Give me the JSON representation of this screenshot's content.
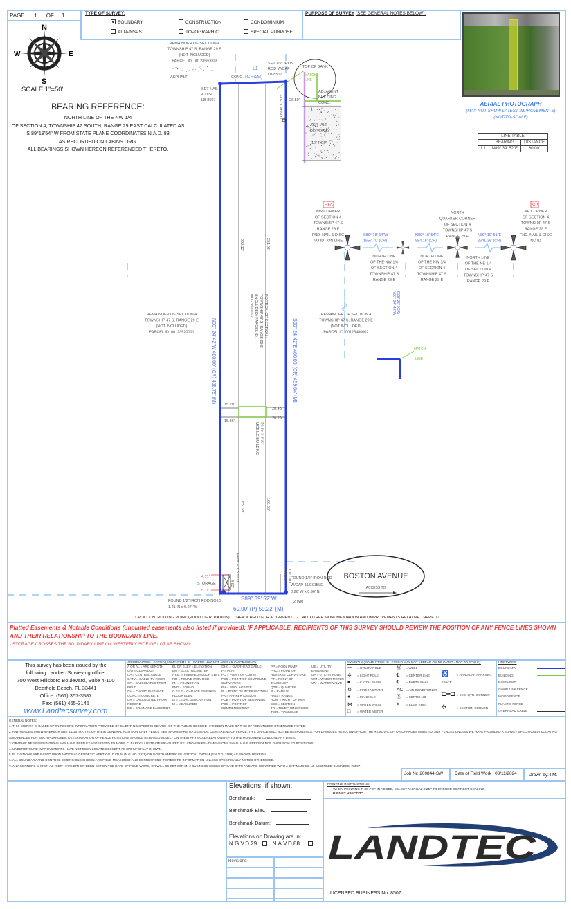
{
  "header": {
    "page_label": "PAGE",
    "page_num": "1",
    "of_label": "OF",
    "of_num": "1",
    "type_title": "TYPE OF SURVEY:",
    "types": [
      {
        "label": "BOUNDARY",
        "checked": true
      },
      {
        "label": "CONSTRUCTION",
        "checked": false
      },
      {
        "label": "CONDOMINIUM",
        "checked": false
      },
      {
        "label": "ALTA/NSPS",
        "checked": false
      },
      {
        "label": "TOPOGRAPHIC",
        "checked": false
      },
      {
        "label": "SPECIAL PURPOSE",
        "checked": false
      }
    ],
    "purpose_title": "PURPOSE OF SURVEY",
    "purpose_note": "(SEE GENERAL NOTES BELOW):"
  },
  "compass": {
    "n": "N",
    "s": "S",
    "e": "E",
    "w": "W",
    "scale": "SCALE:1\"=50'"
  },
  "bearing": {
    "title": "BEARING REFERENCE:",
    "lines": [
      "NORTH LINE OF THE NW 1/4",
      "OF SECTION 4, TOWNSHIP 47 SOUTH, RANGE 29 EAST CALCULATED AS",
      "S 89°18'54\" W FROM STATE PLANE COORDINATES N.A.D. 83",
      "AS RECORDED ON LABINS.ORG.",
      "ALL BEARINGS SHOWN HEREON REFERENCED THERETO."
    ]
  },
  "aerial": {
    "title": "AERIAL PHOTOGRAPH",
    "sub1": "(MAY NOT SHOW LATEST IMPROVEMENTS)",
    "sub2": "(NOT-TO-SCALE)"
  },
  "line_table": {
    "title": "LINE TABLE",
    "headers": [
      "",
      "BEARING",
      "DISTANCE"
    ],
    "rows": [
      [
        "L1",
        "N89° 39' 52\"E",
        "60.00'"
      ]
    ]
  },
  "drawing": {
    "remainder_top": [
      "REMAINDER OF SECTION 4",
      "TOWNSHIP 47 S, RANGE 29 E",
      "(NOT INCLUDED)",
      "PARCEL ID: 00123560003"
    ],
    "remainder_west": [
      "REMAINDER OF SECTION 4",
      "TOWNSHIP 47 S, RANGE 29 E",
      "(NOT INCLUDED)",
      "PARCEL ID: 00123520001"
    ],
    "remainder_east": [
      "REMAINDER OF SECTION 4",
      "TOWNSHIP 47 S, RANGE 29 E",
      "(NOT INCLUDED)",
      "PARCEL ID: 00123480002"
    ],
    "portion": [
      "PORTION OF SECTION 4",
      "TOWNSHIP 47 S, RANGE 29 E",
      "(INCLUDED) PARCEL ID:",
      "00123600002"
    ],
    "set_rod": [
      "SET 1/2\" IRON",
      "ROD W/CAP",
      "LB 8507"
    ],
    "set_nail": [
      "SET NAIL",
      "& DISC",
      "LB 8507"
    ],
    "asphalt": "ASPHALT",
    "conc": "CONC.",
    "l1": "L1",
    "crm": "(CR&M)",
    "top_of_bank": "TOP OF BANK",
    "match_line": [
      "MATCH",
      "LINE"
    ],
    "telecom": "TELECOM BOX",
    "dist_26": "26.59'",
    "adjacent": [
      "ADJACENT",
      "BUILDING",
      "CONC."
    ],
    "driveway": [
      "ASPHALT",
      "DRIVEWAY"
    ],
    "rcp": "12\" RCP",
    "west_line": "N00° 24' 42\"W  460.00' (CR) 458.79' (M)",
    "east_line": "S00° 24' 42\"E  460.00' (CR) 459.04' (M)",
    "dim_292": "292.12'",
    "dim_291": "291.62'",
    "dim_1520": "15.20'",
    "dim_1536": "15.36'",
    "dim_2045": "20.45'",
    "dim_2029": "20.29'",
    "mobile": [
      "MOBILE BUILDING",
      "24.35' x 8.30'"
    ],
    "dim_159": "159.59'",
    "dim_160": "160.06'",
    "fence_w": "FENCE 1.5' OUT",
    "fence_e": [
      "FENCE",
      "1.0' OUT"
    ],
    "storage": "STORAGE",
    "st_471": "4.71'",
    "st_511": "5.11'",
    "dim_483": "4.83'",
    "found_w": [
      "FOUND 1/2\" IRON ROD NO ID",
      "1.21' N x 0.27' W"
    ],
    "found_e": [
      "FOUND 1/2\" IRON ROD",
      "W/CAP ILLEGIBLE",
      "0.26' W x 0.96' N"
    ],
    "wm": "2 WM",
    "south_line": [
      "S89° 39' 52\"W",
      "60.00' (P) 59.22' (M)"
    ],
    "street": "BOSTON AVENUE",
    "access": "ACCESS TO",
    "hfa": "HFA",
    "cp": "CP",
    "nw_corner": [
      "NW CORNER",
      "OF SECTION 4",
      "TOWNSHIP 47 S",
      "RANGE 29 E",
      "FND. NAIL & DISC",
      "NO ID - ON LINE"
    ],
    "nq_corner": [
      "NORTH",
      "QUARTER CORNER",
      "OF SECTION 4",
      "TOWNSHIP 47 S",
      "RANGE 29 E"
    ],
    "ne_corner": [
      "NE CORNER",
      "OF SECTION 4",
      "TOWNSHIP 47 S",
      "RANGE 29 E",
      "FND. NAIL & DISC",
      "NO ID"
    ],
    "b1": [
      "S89° 18' 54\"W",
      "1657.70' (CR)"
    ],
    "b2": [
      "N89° 18' 54\"E",
      "984.16' (CR)"
    ],
    "b3": [
      "N89° 19' 51\"E",
      "2641.38' (CR)"
    ],
    "nl1": [
      "NORTH LINE",
      "OF THE NW 1/4",
      "OF SECTION 4",
      "TOWNSHIP 47 S",
      "RANGE 29 E"
    ],
    "nl2": [
      "NORTH LINE",
      "OF THE NW 1/4",
      "OF SECTION 4",
      "TOWNSHIP 47 S",
      "RANGE 29 E"
    ],
    "nl3": [
      "NORTH LINE",
      "OF THE NE 1/4",
      "OF SECTION 4",
      "TOWNSHIP 47 S",
      "RANGE 29 E"
    ],
    "vert": [
      "N00° 24' 42\"W",
      "2667.28' (CR)"
    ]
  },
  "cp_line": "\"CP\" = CONTROLLING POINT (POINT OF ROTATION)     \"HFA\" = HELD FOR ALIGNMENT    -    ALL OTHER MONUMENTATION AND IMPROVEMENTS RELATIVE THERETO",
  "easements": {
    "lead": "Platted Easements & Notable Conditions (unplatted easements also listed if provided):",
    "bold": " IF APPLICABLE, RECIPIENTS OF THIS SURVEY SHOULD REVIEW THE POSITION OF ANY FENCE LINES SHOWN AND THEIR RELATIONSHIP TO THE BOUNDARY LINE.",
    "item": "- STORAGE CROSSES THE BOUNDARY LINE ON WESTERLY SIDE OF LOT AS SHOWN."
  },
  "office": {
    "lines": [
      "This survey has been issued by the",
      "following Landtec Surveying office:",
      "700 West Hillsboro Boulevard, Suite 4-100",
      "Deerfield Beach, FL 33441",
      "Office: (561) 367-3587",
      "Fax: (561) 465-3145"
    ],
    "web": "www.Landtecsurvey.com"
  },
  "abbrev": {
    "title": "ABBREVIATION LEGEND (SOME ITEMS IN LEGEND MAY NOT APPEAR ON DRAWING):",
    "cols": [
      [
        "A OR AL = ARC LENGTH",
        "C/O = CLEANOUT",
        "CA = CENTRAL ANGLE",
        "CATV = CABLE TV RISER",
        "CF = CALCULATED FROM FIELD",
        "CH = CHORD DISTANCE",
        "CONC. = CONCRETE",
        "CR = CALCULATED FROM RECORD",
        "DE = DRAINAGE EASEMENT"
      ],
      [
        "EL OR ELEV = ELEVATION",
        "EM = ELECTRIC METER",
        "F.F.E. = FINISHED FLOOR ELEV.",
        "FIR = FOUND IRON ROD",
        "FN = FOUND NAIL",
        "FND = FOUND",
        "G.F.F.E = GARAGE FINISHED FLOOR ELEV.",
        "LI = LEGAL DESCRIPTION",
        "M = MEASURED"
      ],
      [
        "OHC = OVERHEAD CABLE",
        "P = PLAT",
        "PC = POINT OF CURVE",
        "PCC = POINT OF COMPOUND CURVATURE",
        "PH = POOL HEATER",
        "PI = POINT OF INTERSECTION",
        "PK = PARKER KAELON",
        "POB = POINT OF BEGINNING",
        "POC = POINT OF COMMENCEMENT"
      ],
      [
        "PP = POOL PUMP",
        "PRC = POINT OF REVERSE CURVATURE",
        "PT = POINT OF TANGENCY",
        "QTR = QUARTER",
        "R = RADIUS",
        "RNG = RANGE",
        "ROW = RIGHT OF WAY",
        "SEC = SECTION",
        "TR = TELEPHONE RISER",
        "TWP = TOWNSHIP"
      ],
      [
        "UE = UTILITY EASEMENT",
        "UP = UTILITY POLE",
        "WM = WATER METER",
        "WV = WATER VALVE"
      ]
    ]
  },
  "symbols": {
    "title": "SYMBOLS (SOME ITEMS IN LEGEND MAY NOT APPEAR ON DRAWING - NOT TO SCALE):",
    "col1": [
      "= UTILITY POLE",
      "= LIGHT POLE",
      "= CATCH BASIN",
      "= FIRE HYDRANT",
      "= MANHOLE",
      "= WATER VALVE",
      "= WATER METER"
    ],
    "col2": [
      "= WELL",
      "= CENTER LINE",
      "= PARTY WALL",
      "= AIR CONDITIONER",
      "= SEPTIC LID",
      "= ELEV. SHOT"
    ],
    "ac": "AC",
    "wm": "WM",
    "x": "X",
    "col3": [
      "= HANDICAP PARKING SPACE",
      "= SEC. QTR. CORNER",
      "= SECTION CORNER"
    ]
  },
  "linetypes": {
    "title": "LINETYPES:",
    "items": [
      {
        "label": "BOUNDARY",
        "color": "#2a3ee0"
      },
      {
        "label": "BUILDING",
        "color": "#7cc942"
      },
      {
        "label": "EASEMENT",
        "color": "#e23b3b"
      },
      {
        "label": "CHAIN LINK FENCE",
        "color": "#333"
      },
      {
        "label": "WOOD FENCE",
        "color": "#333"
      },
      {
        "label": "PLASTIC FENCE",
        "color": "#333"
      },
      {
        "label": "OVERHEAD CABLE",
        "color": "#333"
      }
    ]
  },
  "notes": {
    "title": "GENERAL NOTES:",
    "items": [
      "1. THIS SURVEY IS BASED UPON RECORD INFORMATION PROVIDED BY CLIENT. NO SPECIFIC SEARCH OF THE PUBLIC RECORD HAS BEEN MADE BY THIS OFFICE UNLESS OTHERWISE NOTED.",
      "2. ANY FENCES SHOWN HEREON ARE ILLUSTRATIVE OF THEIR GENERAL POSITION ONLY. FENCE TIES SHOWN ARE TO GENERAL CENTERLINE OF FENCE. THIS OFFICE WILL NOT BE RESPONSIBLE FOR DAMAGES RESULTING FROM THE REMOVAL OF, OR CHANGES MADE TO, ANY FENCES UNLESS WE HAVE PROVIDED A SURVEY SPECIFICALLY LOCATING SAID FENCES FOR SUCH PURPOSES. DETERMINATION OF FENCE POSITIONS SHOULD BE BASED SOLELY ON THEIR PHYSICAL RELATIONSHIP TO THE MONUMENTED BOUNDARY LINES.",
      "3. GRAPHIC REPRESENTATIONS MAY HAVE BEEN EXAGGERATED TO MORE CLEARLY ILLUSTRATE MEASURED RELATIONSHIPS - DIMENSIONS SHALL HAVE PRECEDENCE OVER SCALED POSITIONS.",
      "4. UNDERGROUND IMPROVEMENTS HAVE NOT BEEN LOCATED EXCEPT AS SPECIFICALLY SHOWN.",
      "5. ELEVATIONS ARE BASED UPON NATIONAL GEODETIC VERTICAL DATUM (N.G.V.D. 1929) OR NORTH AMERICAN VERTICAL DATUM (N.A.V.D. 1988) AS SHOWN HEREON.",
      "6. ALL BOUNDARY AND CONTROL DIMENSIONS SHOWN ARE FIELD MEASURED AND CORRESPOND TO RECORD INFORMATION UNLESS SPECIFICALLY NOTED OTHERWISE.",
      "7. ANY CORNERS SHOWN AS \"SET\" HAVE EITHER BEEN SET ON THE DATE OF FIELD WORK, OR WILL BE SET WITHIN 2 BUSINESS WEEKS OF SAID DATE AND ARE IDENTIFIED WITH A CAP MARKED LB (LICENSED BUSINESS) #8507."
    ]
  },
  "job": {
    "job_nr": "Job Nr:  200844-SW",
    "date": "Date of Field Work : 03/11/2024",
    "drawn": "Drawn by: I.M."
  },
  "elev": {
    "title": "Elevations, if shown:",
    "benchmark": "Benchmark:",
    "bm_elev": "Benchmark Elev.:",
    "bm_datum": "Benchmark Datum:",
    "on_drawing": "Elevations on Drawing are in:",
    "ngvd": "N.G.V.D.29",
    "navd": "N.A.V.D.88",
    "revisions": "Revisions:"
  },
  "printing": {
    "title": "PRINTING INSTRUCTIONS:",
    "line": "WHEN PRINTING THIS PDF IN ADOBE, SELECT \"ACTUAL SIZE\" TO ENSURE CORRECT SCALING.",
    "bold": "DO NOT USE \"FIT\"."
  },
  "logo": {
    "text": "LANDTEC",
    "license": "LICENSED BUSINESS No. 8507"
  },
  "colors": {
    "frame": "#9cc6f2",
    "boundary": "#2a3ee0",
    "blue_text": "#4a6cf0",
    "red": "#e23b3b",
    "green": "#7cc942",
    "link": "#3a7be0"
  }
}
